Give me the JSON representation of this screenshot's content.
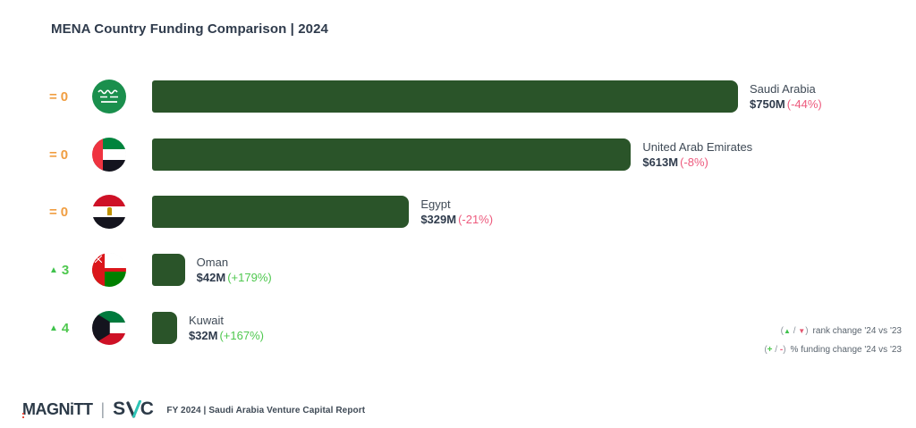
{
  "title": "MENA Country Funding Comparison | 2024",
  "colors": {
    "bar_green": "#2a5429",
    "title_navy": "#2f3b4c",
    "label_gray": "#3f4a56",
    "negative_pink": "#ed5a7d",
    "positive_green": "#4fc84f",
    "rank_orange": "#f09e42",
    "rank_up_green": "#3fc24c",
    "legend_gray": "#5a646e",
    "legend_down_red": "#e4556f",
    "logo_navy": "#2c3a48",
    "svc_teal": "#2ec4b6",
    "logo_red": "#e84c3d"
  },
  "chart_data": {
    "type": "bar",
    "orientation": "horizontal",
    "title": "MENA Country Funding Comparison | 2024",
    "categories": [
      "Saudi Arabia",
      "United Arab Emirates",
      "Egypt",
      "Oman",
      "Kuwait"
    ],
    "values": [
      750,
      613,
      329,
      42,
      32
    ],
    "value_unit": "USD millions",
    "xlim": [
      0,
      750
    ],
    "series": [
      {
        "name": "Funding 2024 ($M)",
        "values": [
          750,
          613,
          329,
          42,
          32
        ]
      },
      {
        "name": "% funding change '24 vs '23",
        "values": [
          "-44%",
          "-8%",
          "-21%",
          "+179%",
          "+167%"
        ]
      },
      {
        "name": "rank change '24 vs '23",
        "values": [
          "= 0",
          "= 0",
          "= 0",
          "▲ 3",
          "▲ 4"
        ]
      }
    ],
    "grid": false,
    "legend_position": "bottom-right"
  },
  "rows": [
    {
      "country": "Saudi Arabia",
      "value": 750,
      "value_label": "$750M",
      "change_label": "(-44%)",
      "change_dir": "negative",
      "rank_symbol": "=",
      "rank_value": "0",
      "rank_state": "same"
    },
    {
      "country": "United Arab Emirates",
      "value": 613,
      "value_label": "$613M",
      "change_label": "(-8%)",
      "change_dir": "negative",
      "rank_symbol": "=",
      "rank_value": "0",
      "rank_state": "same"
    },
    {
      "country": "Egypt",
      "value": 329,
      "value_label": "$329M",
      "change_label": "(-21%)",
      "change_dir": "negative",
      "rank_symbol": "=",
      "rank_value": "0",
      "rank_state": "same"
    },
    {
      "country": "Oman",
      "value": 42,
      "value_label": "$42M",
      "change_label": "(+179%)",
      "change_dir": "positive",
      "rank_symbol": "▲",
      "rank_value": "3",
      "rank_state": "up"
    },
    {
      "country": "Kuwait",
      "value": 32,
      "value_label": "$32M",
      "change_label": "(+167%)",
      "change_dir": "positive",
      "rank_symbol": "▲",
      "rank_value": "4",
      "rank_state": "up"
    }
  ],
  "legend": {
    "rank": {
      "open": "(",
      "up": "▲",
      "slash": " / ",
      "down": "▼",
      "close": ")",
      "label": "rank change '24 vs '23"
    },
    "funding": {
      "open": "(",
      "plus": "+",
      "slash": " / ",
      "minus": "-",
      "close": ")",
      "label": "% funding change '24 vs '23"
    }
  },
  "footer": {
    "logo_magnitt": "MAGNiTT",
    "logo_sep": "|",
    "svc_s": "S",
    "svc_c": "C",
    "report": "FY 2024 | Saudi Arabia Venture Capital Report"
  }
}
